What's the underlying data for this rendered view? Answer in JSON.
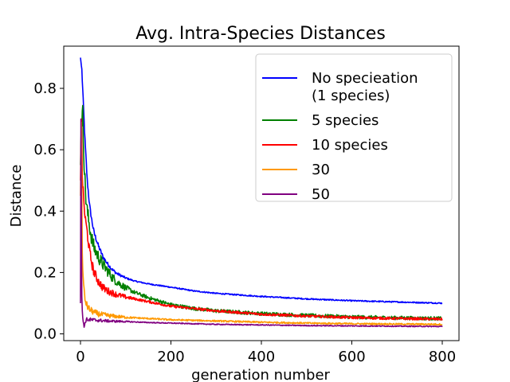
{
  "chart_data": {
    "type": "line",
    "title": "Avg. Intra-Species Distances",
    "xlabel": "generation number",
    "ylabel": "Distance",
    "xlim": [
      -37,
      837
    ],
    "ylim": [
      -0.022,
      0.9375
    ],
    "xticks": [
      0,
      200,
      400,
      600,
      800
    ],
    "yticks": [
      0.0,
      0.2,
      0.4,
      0.6,
      0.8
    ],
    "xtick_labels": [
      "0",
      "200",
      "400",
      "600",
      "800"
    ],
    "ytick_labels": [
      "0.0",
      "0.2",
      "0.4",
      "0.6",
      "0.8"
    ],
    "grid": false,
    "legend_position": "top-right",
    "series": [
      {
        "name": "No specieation\n(1 species)",
        "color": "#0000ff",
        "noise": 0.002,
        "x": [
          0,
          3,
          6,
          10,
          15,
          20,
          25,
          30,
          40,
          50,
          60,
          70,
          80,
          100,
          120,
          150,
          200,
          250,
          300,
          400,
          500,
          600,
          700,
          800
        ],
        "y": [
          0.9,
          0.86,
          0.76,
          0.63,
          0.5,
          0.42,
          0.37,
          0.33,
          0.285,
          0.25,
          0.228,
          0.21,
          0.197,
          0.182,
          0.172,
          0.163,
          0.152,
          0.14,
          0.132,
          0.122,
          0.114,
          0.108,
          0.104,
          0.1
        ]
      },
      {
        "name": "5 species",
        "color": "#008000",
        "noise": 0.006,
        "x": [
          0,
          2,
          5,
          8,
          12,
          15,
          20,
          25,
          30,
          40,
          50,
          60,
          70,
          80,
          100,
          120,
          150,
          200,
          250,
          300,
          400,
          500,
          600,
          700,
          800
        ],
        "y": [
          0.55,
          0.69,
          0.72,
          0.56,
          0.44,
          0.4,
          0.35,
          0.31,
          0.28,
          0.25,
          0.225,
          0.205,
          0.185,
          0.17,
          0.15,
          0.135,
          0.118,
          0.095,
          0.083,
          0.075,
          0.066,
          0.06,
          0.055,
          0.052,
          0.05
        ]
      },
      {
        "name": "10 species",
        "color": "#ff0000",
        "noise": 0.004,
        "x": [
          0,
          2,
          4,
          6,
          8,
          10,
          15,
          20,
          25,
          30,
          40,
          50,
          60,
          80,
          100,
          150,
          200,
          300,
          400,
          500,
          600,
          700,
          800
        ],
        "y": [
          0.5,
          0.7,
          0.52,
          0.46,
          0.42,
          0.38,
          0.33,
          0.27,
          0.23,
          0.2,
          0.17,
          0.15,
          0.14,
          0.128,
          0.12,
          0.105,
          0.09,
          0.075,
          0.064,
          0.058,
          0.053,
          0.05,
          0.048
        ]
      },
      {
        "name": "30",
        "color": "#ff9900",
        "noise": 0.0025,
        "x": [
          0,
          2,
          4,
          6,
          8,
          10,
          15,
          20,
          30,
          40,
          50,
          70,
          100,
          150,
          200,
          300,
          400,
          500,
          600,
          700,
          800
        ],
        "y": [
          0.45,
          0.69,
          0.26,
          0.18,
          0.14,
          0.11,
          0.09,
          0.08,
          0.07,
          0.065,
          0.062,
          0.058,
          0.054,
          0.05,
          0.046,
          0.042,
          0.038,
          0.035,
          0.033,
          0.032,
          0.031
        ]
      },
      {
        "name": "50",
        "color": "#800080",
        "noise": 0.0015,
        "x": [
          0,
          1,
          2,
          3,
          4,
          6,
          8,
          10,
          12,
          15,
          20,
          30,
          40,
          60,
          100,
          150,
          200,
          300,
          400,
          500,
          600,
          700,
          800
        ],
        "y": [
          0.1,
          0.7,
          0.35,
          0.12,
          0.07,
          0.04,
          0.028,
          0.032,
          0.045,
          0.047,
          0.046,
          0.045,
          0.044,
          0.042,
          0.04,
          0.037,
          0.035,
          0.031,
          0.029,
          0.027,
          0.026,
          0.025,
          0.024
        ]
      }
    ]
  }
}
